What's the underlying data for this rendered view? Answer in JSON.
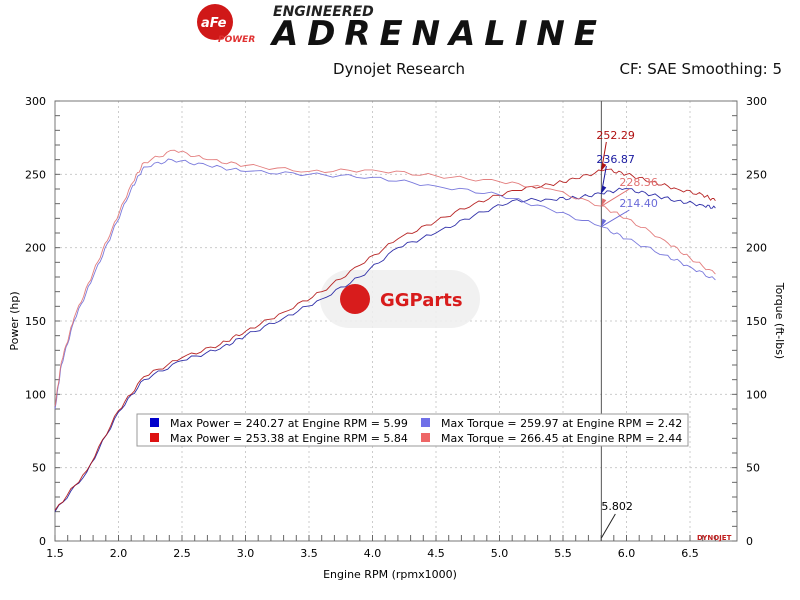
{
  "header": {
    "logo_brand": "aFe POWER",
    "logo_tagline_small": "ENGINEERED",
    "logo_tagline_large": "ADRENALINE",
    "subtitle": "Dynojet Research",
    "settings": "CF: SAE Smoothing: 5"
  },
  "watermark": "GGParts",
  "dynojet_mark": "DYNOJET",
  "chart_data": {
    "type": "line",
    "xlabel": "Engine RPM (rpmx1000)",
    "ylabel": "Power (hp)",
    "y2label": "Torque (ft-lbs)",
    "xlim": [
      1.5,
      6.75
    ],
    "ylim": [
      0,
      300
    ],
    "y2lim": [
      0,
      300
    ],
    "xticks": [
      "1.5",
      "2.0",
      "2.5",
      "3.0",
      "3.5",
      "4.0",
      "4.5",
      "5.0",
      "5.5",
      "6.0",
      "6.5"
    ],
    "yticks": [
      "0",
      "50",
      "100",
      "150",
      "200",
      "250",
      "300"
    ],
    "grid": true,
    "cursor": {
      "x": 5.802,
      "label": "5.802"
    },
    "series": [
      {
        "name": "Max Power = 240.27 at Engine RPM = 5.99",
        "color": "#1a1aa0",
        "axis": "left",
        "x": [
          1.5,
          1.75,
          2.0,
          2.2,
          2.5,
          2.8,
          3.0,
          3.3,
          3.6,
          3.9,
          4.2,
          4.5,
          4.8,
          5.1,
          5.4,
          5.6,
          5.8,
          5.99,
          6.2,
          6.4,
          6.6,
          6.7
        ],
        "y": [
          20,
          47,
          88,
          110,
          123,
          131,
          140,
          152,
          165,
          180,
          200,
          210,
          222,
          232,
          233,
          234,
          236.87,
          240.27,
          236,
          232,
          229,
          227
        ],
        "cursor_value": "236.87"
      },
      {
        "name": "Max Power = 253.38 at Engine RPM = 5.84",
        "color": "#b01010",
        "axis": "left",
        "x": [
          1.5,
          1.75,
          2.0,
          2.2,
          2.5,
          2.8,
          3.0,
          3.3,
          3.6,
          3.9,
          4.2,
          4.5,
          4.8,
          5.1,
          5.4,
          5.6,
          5.84,
          6.0,
          6.2,
          6.4,
          6.6,
          6.7
        ],
        "y": [
          21,
          48,
          89,
          112,
          125,
          134,
          143,
          156,
          170,
          188,
          206,
          218,
          230,
          239,
          243,
          247,
          253.38,
          250,
          245,
          240,
          236,
          232
        ],
        "cursor_value": "252.29"
      },
      {
        "name": "Max Torque = 259.97 at Engine RPM = 2.42",
        "color": "#6a6ad8",
        "axis": "right",
        "x": [
          1.5,
          1.55,
          1.65,
          1.8,
          1.95,
          2.1,
          2.2,
          2.42,
          2.7,
          3.0,
          3.5,
          4.0,
          4.5,
          5.0,
          5.4,
          5.8,
          6.0,
          6.3,
          6.5,
          6.7
        ],
        "y": [
          90,
          120,
          150,
          180,
          210,
          240,
          255,
          259.97,
          256,
          252,
          250,
          248,
          242,
          236,
          226,
          214.4,
          206,
          195,
          187,
          178
        ],
        "cursor_value": "214.40"
      },
      {
        "name": "Max Torque = 266.45 at Engine RPM = 2.44",
        "color": "#e07070",
        "axis": "right",
        "x": [
          1.5,
          1.55,
          1.65,
          1.8,
          1.95,
          2.1,
          2.2,
          2.44,
          2.7,
          3.0,
          3.5,
          4.0,
          4.5,
          5.0,
          5.4,
          5.8,
          6.0,
          6.3,
          6.5,
          6.7
        ],
        "y": [
          92,
          122,
          152,
          183,
          213,
          243,
          258,
          266.45,
          260,
          256,
          252,
          253,
          249,
          245,
          240,
          228.36,
          220,
          205,
          193,
          182
        ],
        "cursor_value": "228.36"
      }
    ]
  }
}
